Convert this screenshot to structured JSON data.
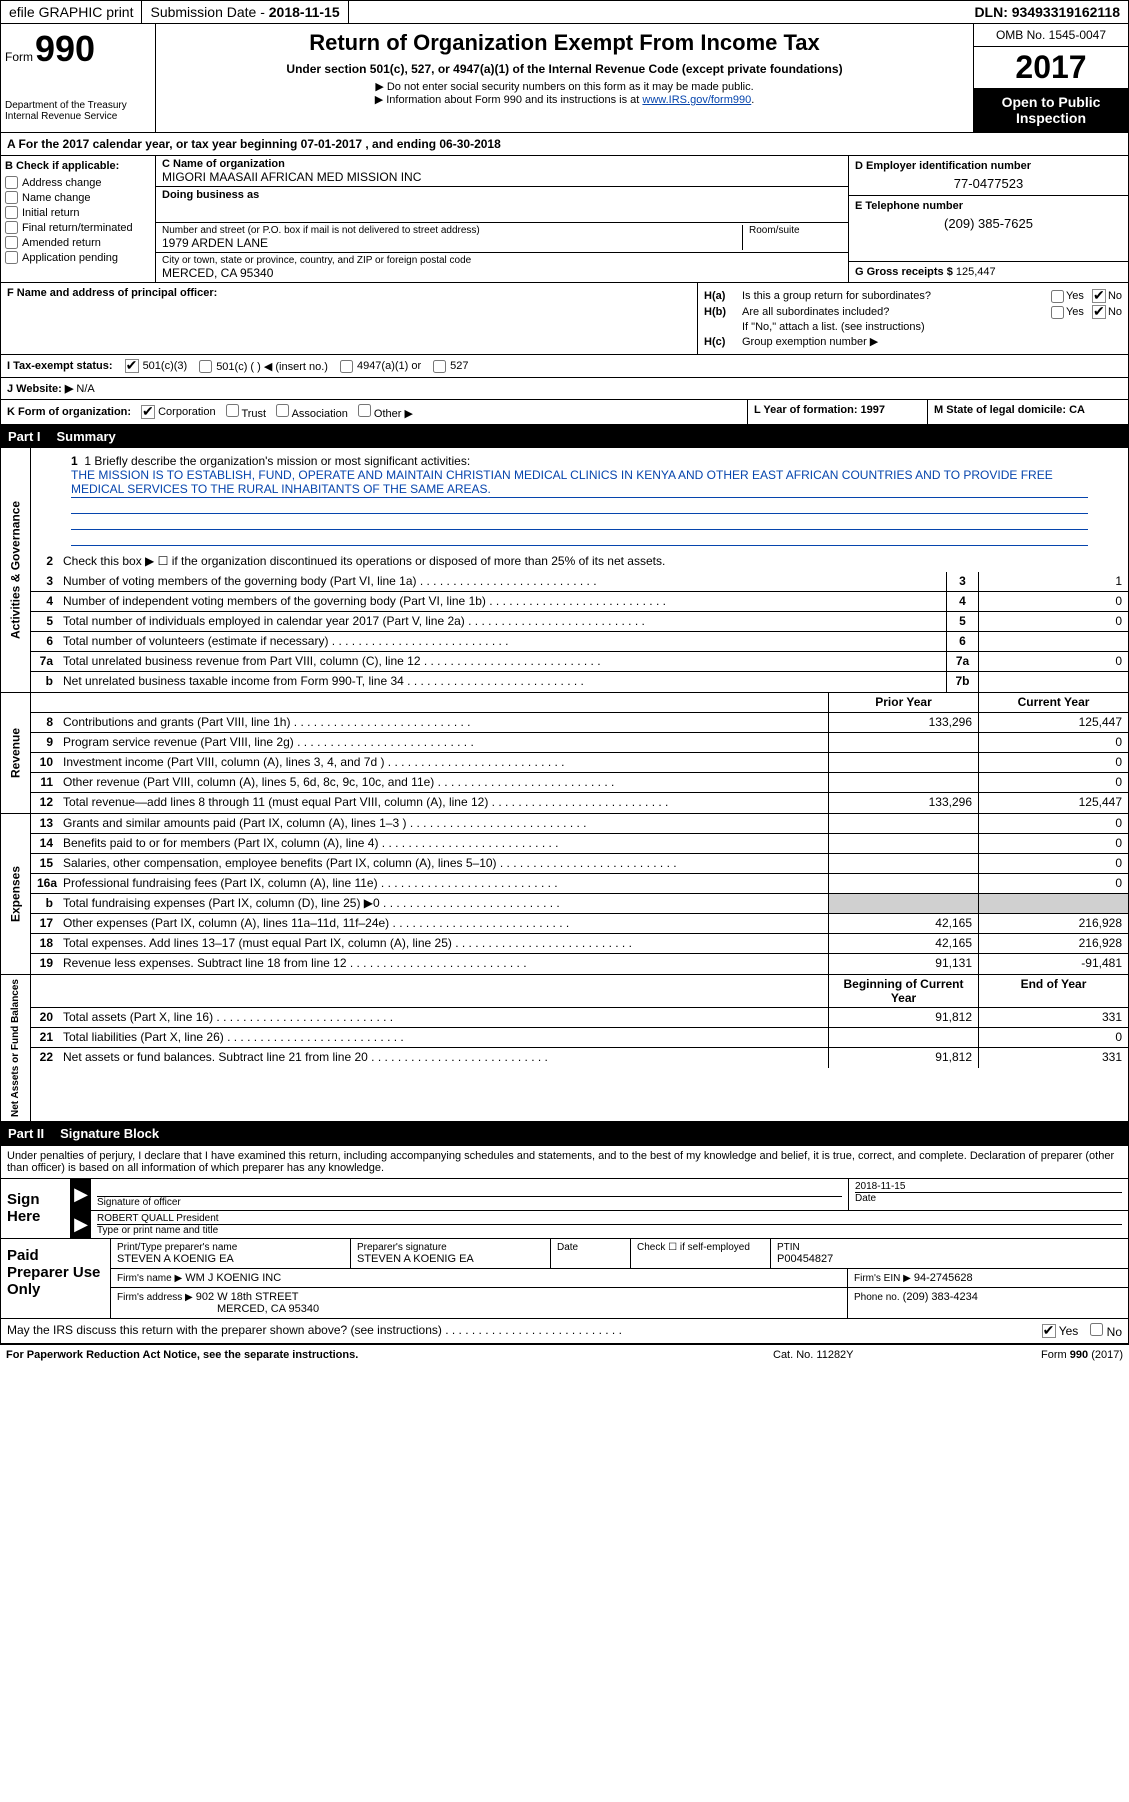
{
  "topbar": {
    "efile": "efile GRAPHIC print",
    "subdate_label": "Submission Date - ",
    "subdate": "2018-11-15",
    "dln_label": "DLN: ",
    "dln": "93493319162118"
  },
  "header": {
    "form_label": "Form",
    "form_num": "990",
    "dept1": "Department of the Treasury",
    "dept2": "Internal Revenue Service",
    "title": "Return of Organization Exempt From Income Tax",
    "subtitle": "Under section 501(c), 527, or 4947(a)(1) of the Internal Revenue Code (except private foundations)",
    "note1": "▶ Do not enter social security numbers on this form as it may be made public.",
    "note2_pre": "▶ Information about Form 990 and its instructions is at ",
    "note2_link": "www.IRS.gov/form990",
    "omb": "OMB No. 1545-0047",
    "year": "2017",
    "open1": "Open to Public",
    "open2": "Inspection"
  },
  "section_a": "A   For the 2017 calendar year, or tax year beginning 07-01-2017    , and ending 06-30-2018",
  "col_b": {
    "label": "B Check if applicable:",
    "items": [
      "Address change",
      "Name change",
      "Initial return",
      "Final return/terminated",
      "Amended return",
      "Application pending"
    ]
  },
  "col_c": {
    "name_label": "C Name of organization",
    "name": "MIGORI MAASAII AFRICAN MED MISSION INC",
    "dba_label": "Doing business as",
    "dba": "",
    "street_label": "Number and street (or P.O. box if mail is not delivered to street address)",
    "street": "1979 ARDEN LANE",
    "room_label": "Room/suite",
    "city_label": "City or town, state or province, country, and ZIP or foreign postal code",
    "city": "MERCED, CA  95340"
  },
  "col_d": {
    "ein_label": "D Employer identification number",
    "ein": "77-0477523",
    "phone_label": "E Telephone number",
    "phone": "(209) 385-7625",
    "gross_label": "G Gross receipts $ ",
    "gross": "125,447"
  },
  "col_f": {
    "label": "F Name and address of principal officer:",
    "value": ""
  },
  "col_h": {
    "ha_label": "H(a)",
    "ha_text": "Is this a group return for subordinates?",
    "hb_label": "H(b)",
    "hb_text": "Are all subordinates included?",
    "hb_note": "If \"No,\" attach a list. (see instructions)",
    "hc_label": "H(c)",
    "hc_text": "Group exemption number ▶",
    "yes": "Yes",
    "no": "No"
  },
  "row_i": {
    "label": "I   Tax-exempt status:",
    "opt1": "501(c)(3)",
    "opt2": "501(c) (   ) ◀ (insert no.)",
    "opt3": "4947(a)(1) or",
    "opt4": "527"
  },
  "row_j": {
    "label": "J   Website: ▶",
    "value": "N/A"
  },
  "row_k": {
    "label": "K Form of organization:",
    "opt_corp": "Corporation",
    "opt_trust": "Trust",
    "opt_assoc": "Association",
    "opt_other": "Other ▶"
  },
  "row_l": "L Year of formation: 1997",
  "row_m": "M State of legal domicile: CA",
  "part1": {
    "header_num": "Part I",
    "header_title": "Summary",
    "vert_gov": "Activities & Governance",
    "vert_rev": "Revenue",
    "vert_exp": "Expenses",
    "vert_net": "Net Assets or Fund Balances",
    "mission_label": "1  Briefly describe the organization's mission or most significant activities:",
    "mission_text": "THE MISSION IS TO ESTABLISH, FUND, OPERATE AND MAINTAIN CHRISTIAN MEDICAL CLINICS IN KENYA AND OTHER EAST AFRICAN COUNTRIES AND TO PROVIDE FREE MEDICAL SERVICES TO THE RURAL INHABITANTS OF THE SAME AREAS.",
    "line2": "Check this box ▶ ☐  if the organization discontinued its operations or disposed of more than 25% of its net assets.",
    "prior_header": "Prior Year",
    "curr_header": "Current Year",
    "begin_header": "Beginning of Current Year",
    "end_header": "End of Year",
    "rows_gov": [
      {
        "n": "3",
        "desc": "Number of voting members of the governing body (Part VI, line 1a)",
        "box": "3",
        "val": "1"
      },
      {
        "n": "4",
        "desc": "Number of independent voting members of the governing body (Part VI, line 1b)",
        "box": "4",
        "val": "0"
      },
      {
        "n": "5",
        "desc": "Total number of individuals employed in calendar year 2017 (Part V, line 2a)",
        "box": "5",
        "val": "0"
      },
      {
        "n": "6",
        "desc": "Total number of volunteers (estimate if necessary)",
        "box": "6",
        "val": ""
      },
      {
        "n": "7a",
        "desc": "Total unrelated business revenue from Part VIII, column (C), line 12",
        "box": "7a",
        "val": "0"
      },
      {
        "n": "b",
        "desc": "Net unrelated business taxable income from Form 990-T, line 34",
        "box": "7b",
        "val": ""
      }
    ],
    "rows_rev": [
      {
        "n": "8",
        "desc": "Contributions and grants (Part VIII, line 1h)",
        "prior": "133,296",
        "curr": "125,447"
      },
      {
        "n": "9",
        "desc": "Program service revenue (Part VIII, line 2g)",
        "prior": "",
        "curr": "0"
      },
      {
        "n": "10",
        "desc": "Investment income (Part VIII, column (A), lines 3, 4, and 7d )",
        "prior": "",
        "curr": "0"
      },
      {
        "n": "11",
        "desc": "Other revenue (Part VIII, column (A), lines 5, 6d, 8c, 9c, 10c, and 11e)",
        "prior": "",
        "curr": "0"
      },
      {
        "n": "12",
        "desc": "Total revenue—add lines 8 through 11 (must equal Part VIII, column (A), line 12)",
        "prior": "133,296",
        "curr": "125,447"
      }
    ],
    "rows_exp": [
      {
        "n": "13",
        "desc": "Grants and similar amounts paid (Part IX, column (A), lines 1–3 )",
        "prior": "",
        "curr": "0"
      },
      {
        "n": "14",
        "desc": "Benefits paid to or for members (Part IX, column (A), line 4)",
        "prior": "",
        "curr": "0"
      },
      {
        "n": "15",
        "desc": "Salaries, other compensation, employee benefits (Part IX, column (A), lines 5–10)",
        "prior": "",
        "curr": "0"
      },
      {
        "n": "16a",
        "desc": "Professional fundraising fees (Part IX, column (A), line 11e)",
        "prior": "",
        "curr": "0"
      },
      {
        "n": "b",
        "desc": "Total fundraising expenses (Part IX, column (D), line 25) ▶0",
        "gray_prior": true,
        "gray_curr": true
      },
      {
        "n": "17",
        "desc": "Other expenses (Part IX, column (A), lines 11a–11d, 11f–24e)",
        "prior": "42,165",
        "curr": "216,928"
      },
      {
        "n": "18",
        "desc": "Total expenses. Add lines 13–17 (must equal Part IX, column (A), line 25)",
        "prior": "42,165",
        "curr": "216,928"
      },
      {
        "n": "19",
        "desc": "Revenue less expenses. Subtract line 18 from line 12",
        "prior": "91,131",
        "curr": "-91,481"
      }
    ],
    "rows_net": [
      {
        "n": "20",
        "desc": "Total assets (Part X, line 16)",
        "prior": "91,812",
        "curr": "331"
      },
      {
        "n": "21",
        "desc": "Total liabilities (Part X, line 26)",
        "prior": "",
        "curr": "0"
      },
      {
        "n": "22",
        "desc": "Net assets or fund balances. Subtract line 21 from line 20",
        "prior": "91,812",
        "curr": "331"
      }
    ]
  },
  "part2": {
    "header_num": "Part II",
    "header_title": "Signature Block",
    "penalty": "Under penalties of perjury, I declare that I have examined this return, including accompanying schedules and statements, and to the best of my knowledge and belief, it is true, correct, and complete. Declaration of preparer (other than officer) is based on all information of which preparer has any knowledge.",
    "sign_here": "Sign Here",
    "sig_officer": "Signature of officer",
    "date_label": "Date",
    "date": "2018-11-15",
    "officer_name": "ROBERT QUALL President",
    "type_name": "Type or print name and title"
  },
  "preparer": {
    "label": "Paid Preparer Use Only",
    "print_label": "Print/Type preparer's name",
    "print_name": "STEVEN A KOENIG EA",
    "sig_label": "Preparer's signature",
    "sig_name": "STEVEN A KOENIG EA",
    "date_label": "Date",
    "check_label": "Check ☐ if self-employed",
    "ptin_label": "PTIN",
    "ptin": "P00454827",
    "firm_name_label": "Firm's name    ▶",
    "firm_name": "WM J KOENIG INC",
    "firm_ein_label": "Firm's EIN ▶",
    "firm_ein": "94-2745628",
    "firm_addr_label": "Firm's address ▶",
    "firm_addr1": "902 W 18th STREET",
    "firm_addr2": "MERCED, CA  95340",
    "phone_label": "Phone no.",
    "phone": "(209) 383-4234"
  },
  "discuss": {
    "text": "May the IRS discuss this return with the preparer shown above? (see instructions)",
    "yes": "Yes",
    "no": "No"
  },
  "footer": {
    "left": "For Paperwork Reduction Act Notice, see the separate instructions.",
    "mid": "Cat. No. 11282Y",
    "right": "Form 990 (2017)"
  }
}
